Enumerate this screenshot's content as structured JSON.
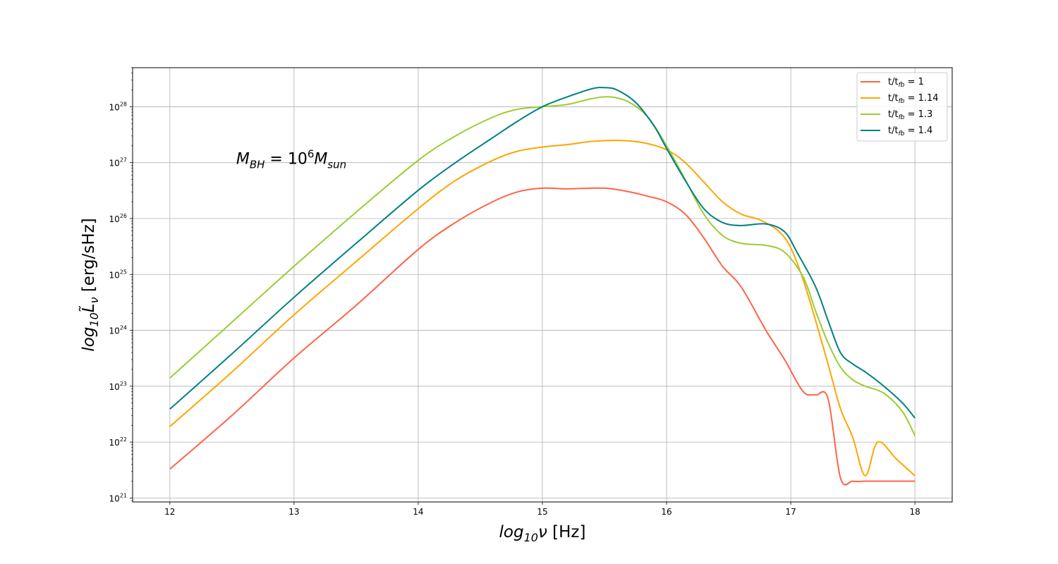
{
  "chart_data": {
    "type": "line",
    "x_scale": "linear",
    "y_scale": "log",
    "xlim": [
      11.7,
      18.3
    ],
    "ylim": [
      8.5e+20,
      5e+28
    ],
    "grid": true,
    "legend_position": "top-right",
    "xlabel": {
      "prefix": "log",
      "sub": "10",
      "var": "ν",
      "unit": " [Hz]"
    },
    "ylabel": {
      "prefix": "log",
      "sub": "10",
      "var": "L̃",
      "varsub": "ν",
      "unit": " [erg/sHz]"
    },
    "x_ticks": [
      {
        "value": 12,
        "label": "12"
      },
      {
        "value": 13,
        "label": "13"
      },
      {
        "value": 14,
        "label": "14"
      },
      {
        "value": 15,
        "label": "15"
      },
      {
        "value": 16,
        "label": "16"
      },
      {
        "value": 17,
        "label": "17"
      },
      {
        "value": 18,
        "label": "18"
      }
    ],
    "y_ticks": [
      {
        "value": 1e+21,
        "base": "10",
        "exp": "21"
      },
      {
        "value": 1e+22,
        "base": "10",
        "exp": "22"
      },
      {
        "value": 1e+23,
        "base": "10",
        "exp": "23"
      },
      {
        "value": 1e+24,
        "base": "10",
        "exp": "24"
      },
      {
        "value": 1e+25,
        "base": "10",
        "exp": "25"
      },
      {
        "value": 1e+26,
        "base": "10",
        "exp": "26"
      },
      {
        "value": 1e+27,
        "base": "10",
        "exp": "27"
      },
      {
        "value": 1e+28,
        "base": "10",
        "exp": "28"
      }
    ],
    "annotation": {
      "M": "M",
      "msub": "BH",
      "eq": " = 10",
      "exp": "6",
      "M2": "M",
      "m2sub": "sun",
      "anchor_x": 12.5,
      "anchor_y": 1e+27
    },
    "series": [
      {
        "name_main": "t/t",
        "name_sub": "fb",
        "name_value": " = 1",
        "color": "#ff6347",
        "x": [
          12.0,
          12.5,
          13.0,
          13.5,
          14.0,
          14.3,
          14.6,
          14.8,
          15.0,
          15.2,
          15.5,
          15.7,
          15.85,
          16.0,
          16.15,
          16.3,
          16.45,
          16.6,
          16.8,
          16.95,
          17.1,
          17.2,
          17.3,
          17.4,
          17.5,
          17.6,
          17.7,
          17.85,
          18.0
        ],
        "y": [
          3.3e+21,
          3e+22,
          3.2e+23,
          2.8e+24,
          2.8e+25,
          8.5e+25,
          2e+26,
          3e+26,
          3.5e+26,
          3.4e+26,
          3.5e+26,
          3e+26,
          2.5e+26,
          2e+26,
          1.2e+26,
          4.5e+25,
          1.4e+25,
          6e+24,
          1e+24,
          3e+23,
          8e+22,
          7e+22,
          6e+22,
          2.3e+21,
          2e+21,
          2e+21,
          2e+21,
          2e+21,
          2e+21
        ]
      },
      {
        "name_main": "t/t",
        "name_sub": "fb",
        "name_value": " = 1.14",
        "color": "#ffa500",
        "x": [
          12.0,
          12.5,
          13.0,
          13.5,
          14.0,
          14.3,
          14.6,
          14.8,
          15.0,
          15.2,
          15.4,
          15.6,
          15.8,
          16.0,
          16.15,
          16.3,
          16.45,
          16.6,
          16.75,
          16.9,
          17.0,
          17.1,
          17.2,
          17.3,
          17.4,
          17.5,
          17.6,
          17.7,
          17.85,
          18.0
        ],
        "y": [
          1.9e+22,
          1.8e+23,
          1.9e+24,
          1.7e+25,
          1.5e+26,
          4.8e+26,
          1.1e+27,
          1.6e+27,
          1.9e+27,
          2.1e+27,
          2.4e+27,
          2.5e+27,
          2.3e+27,
          1.7e+27,
          1e+27,
          4.5e+26,
          2e+26,
          1.2e+26,
          9.5e+25,
          6e+25,
          3e+25,
          8e+24,
          1.5e+24,
          2.5e+23,
          4e+22,
          1.2e+22,
          2.5e+21,
          1e+22,
          5e+21,
          2.5e+21
        ]
      },
      {
        "name_main": "t/t",
        "name_sub": "fb",
        "name_value": " = 1.3",
        "color": "#9acd32",
        "x": [
          12.0,
          12.5,
          13.0,
          13.5,
          14.0,
          14.3,
          14.6,
          14.8,
          15.0,
          15.2,
          15.4,
          15.55,
          15.7,
          15.85,
          16.0,
          16.15,
          16.3,
          16.45,
          16.6,
          16.8,
          16.95,
          17.1,
          17.2,
          17.3,
          17.4,
          17.5,
          17.6,
          17.75,
          17.9,
          18.0
        ],
        "y": [
          1.4e+23,
          1.4e+24,
          1.4e+25,
          1.3e+26,
          1.1e+27,
          3e+27,
          6.5e+27,
          9e+27,
          1e+28,
          1.1e+28,
          1.4e+28,
          1.5e+28,
          1.2e+28,
          6.5e+27,
          2e+27,
          5e+26,
          1.2e+26,
          5e+25,
          3.6e+25,
          3.3e+25,
          2.5e+25,
          9e+24,
          2.2e+24,
          6e+23,
          2.2e+23,
          1.3e+23,
          1e+23,
          7.5e+22,
          3.5e+22,
          1.3e+22
        ]
      },
      {
        "name_main": "t/t",
        "name_sub": "fb",
        "name_value": " = 1.4",
        "color": "#008080",
        "x": [
          12.0,
          12.5,
          13.0,
          13.5,
          14.0,
          14.3,
          14.6,
          14.8,
          15.0,
          15.2,
          15.4,
          15.5,
          15.6,
          15.75,
          15.9,
          16.0,
          16.15,
          16.3,
          16.45,
          16.6,
          16.8,
          16.95,
          17.05,
          17.2,
          17.3,
          17.4,
          17.5,
          17.6,
          17.75,
          17.9,
          18.0
        ],
        "y": [
          3.9e+22,
          3.8e+23,
          3.9e+24,
          3.6e+25,
          3.2e+26,
          1e+27,
          2.8e+27,
          5.5e+27,
          1e+28,
          1.5e+28,
          2.1e+28,
          2.2e+28,
          2e+28,
          1.2e+28,
          4.5e+27,
          1.8e+27,
          4.8e+26,
          1.5e+26,
          8.5e+25,
          7.5e+25,
          8e+25,
          5.8e+25,
          2.5e+25,
          6e+24,
          1.5e+24,
          4e+23,
          2.5e+23,
          1.8e+23,
          1e+23,
          5e+22,
          2.7e+22
        ]
      }
    ]
  }
}
